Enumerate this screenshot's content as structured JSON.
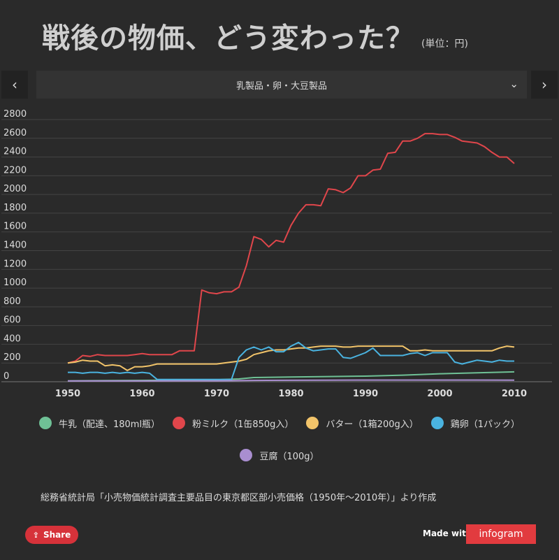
{
  "header": {
    "title": "戦後の物価、どう変わった？",
    "unit": "(単位：円)"
  },
  "selector": {
    "current": "乳製品・卵・大豆製品"
  },
  "chart_data": {
    "type": "line",
    "xlim": [
      1950,
      2010
    ],
    "ylim": [
      0,
      2800
    ],
    "x_ticks": [
      1950,
      1960,
      1970,
      1980,
      1990,
      2000,
      2010
    ],
    "y_ticks": [
      0,
      200,
      400,
      600,
      800,
      1000,
      1200,
      1400,
      1600,
      1800,
      2000,
      2200,
      2400,
      2600,
      2800
    ],
    "grid": true,
    "legend_position": "bottom",
    "series": [
      {
        "name": "牛乳（配達、180ml瓶）",
        "color": "#6fc196",
        "points": [
          [
            1950,
            10
          ],
          [
            1955,
            12
          ],
          [
            1960,
            14
          ],
          [
            1965,
            18
          ],
          [
            1970,
            22
          ],
          [
            1973,
            30
          ],
          [
            1975,
            45
          ],
          [
            1980,
            50
          ],
          [
            1985,
            55
          ],
          [
            1990,
            60
          ],
          [
            1995,
            70
          ],
          [
            2000,
            85
          ],
          [
            2005,
            95
          ],
          [
            2010,
            105
          ]
        ]
      },
      {
        "name": "粉ミルク（1缶850g入）",
        "color": "#e0464b",
        "points": [
          [
            1950,
            200
          ],
          [
            1951,
            220
          ],
          [
            1952,
            280
          ],
          [
            1953,
            270
          ],
          [
            1954,
            290
          ],
          [
            1955,
            280
          ],
          [
            1956,
            280
          ],
          [
            1957,
            280
          ],
          [
            1958,
            280
          ],
          [
            1959,
            290
          ],
          [
            1960,
            300
          ],
          [
            1961,
            290
          ],
          [
            1962,
            290
          ],
          [
            1963,
            290
          ],
          [
            1964,
            290
          ],
          [
            1965,
            330
          ],
          [
            1966,
            330
          ],
          [
            1967,
            330
          ],
          [
            1968,
            980
          ],
          [
            1969,
            950
          ],
          [
            1970,
            940
          ],
          [
            1971,
            960
          ],
          [
            1972,
            960
          ],
          [
            1973,
            1010
          ],
          [
            1974,
            1240
          ],
          [
            1975,
            1550
          ],
          [
            1976,
            1520
          ],
          [
            1977,
            1440
          ],
          [
            1978,
            1510
          ],
          [
            1979,
            1490
          ],
          [
            1980,
            1670
          ],
          [
            1981,
            1800
          ],
          [
            1982,
            1890
          ],
          [
            1983,
            1890
          ],
          [
            1984,
            1880
          ],
          [
            1985,
            2060
          ],
          [
            1986,
            2050
          ],
          [
            1987,
            2020
          ],
          [
            1988,
            2070
          ],
          [
            1989,
            2200
          ],
          [
            1990,
            2200
          ],
          [
            1991,
            2260
          ],
          [
            1992,
            2270
          ],
          [
            1993,
            2440
          ],
          [
            1994,
            2450
          ],
          [
            1995,
            2570
          ],
          [
            1996,
            2570
          ],
          [
            1997,
            2600
          ],
          [
            1998,
            2650
          ],
          [
            1999,
            2650
          ],
          [
            2000,
            2640
          ],
          [
            2001,
            2640
          ],
          [
            2002,
            2610
          ],
          [
            2003,
            2570
          ],
          [
            2004,
            2560
          ],
          [
            2005,
            2550
          ],
          [
            2006,
            2510
          ],
          [
            2007,
            2450
          ],
          [
            2008,
            2400
          ],
          [
            2009,
            2400
          ],
          [
            2010,
            2330
          ]
        ]
      },
      {
        "name": "バター（1箱200g入）",
        "color": "#f2c46a",
        "points": [
          [
            1950,
            200
          ],
          [
            1951,
            210
          ],
          [
            1952,
            230
          ],
          [
            1953,
            220
          ],
          [
            1954,
            220
          ],
          [
            1955,
            170
          ],
          [
            1956,
            180
          ],
          [
            1957,
            170
          ],
          [
            1958,
            120
          ],
          [
            1959,
            160
          ],
          [
            1960,
            160
          ],
          [
            1961,
            170
          ],
          [
            1962,
            190
          ],
          [
            1963,
            190
          ],
          [
            1964,
            190
          ],
          [
            1965,
            190
          ],
          [
            1966,
            190
          ],
          [
            1967,
            190
          ],
          [
            1968,
            190
          ],
          [
            1969,
            190
          ],
          [
            1970,
            190
          ],
          [
            1971,
            200
          ],
          [
            1972,
            210
          ],
          [
            1973,
            220
          ],
          [
            1974,
            240
          ],
          [
            1975,
            290
          ],
          [
            1976,
            310
          ],
          [
            1977,
            330
          ],
          [
            1978,
            340
          ],
          [
            1979,
            340
          ],
          [
            1980,
            350
          ],
          [
            1981,
            360
          ],
          [
            1982,
            360
          ],
          [
            1983,
            370
          ],
          [
            1984,
            380
          ],
          [
            1985,
            380
          ],
          [
            1986,
            380
          ],
          [
            1987,
            370
          ],
          [
            1988,
            370
          ],
          [
            1989,
            380
          ],
          [
            1990,
            380
          ],
          [
            1991,
            380
          ],
          [
            1992,
            380
          ],
          [
            1993,
            380
          ],
          [
            1994,
            380
          ],
          [
            1995,
            380
          ],
          [
            1996,
            330
          ],
          [
            1997,
            330
          ],
          [
            1998,
            340
          ],
          [
            1999,
            330
          ],
          [
            2000,
            330
          ],
          [
            2001,
            330
          ],
          [
            2002,
            330
          ],
          [
            2003,
            330
          ],
          [
            2004,
            330
          ],
          [
            2005,
            330
          ],
          [
            2006,
            330
          ],
          [
            2007,
            330
          ],
          [
            2008,
            360
          ],
          [
            2009,
            380
          ],
          [
            2010,
            370
          ]
        ]
      },
      {
        "name": "鶏卵（1パック）",
        "color": "#4ab3e0",
        "points": [
          [
            1950,
            100
          ],
          [
            1951,
            100
          ],
          [
            1952,
            90
          ],
          [
            1953,
            100
          ],
          [
            1954,
            100
          ],
          [
            1955,
            90
          ],
          [
            1956,
            100
          ],
          [
            1957,
            90
          ],
          [
            1958,
            100
          ],
          [
            1959,
            90
          ],
          [
            1960,
            100
          ],
          [
            1961,
            90
          ],
          [
            1962,
            25
          ],
          [
            1963,
            25
          ],
          [
            1964,
            25
          ],
          [
            1965,
            25
          ],
          [
            1966,
            25
          ],
          [
            1967,
            25
          ],
          [
            1968,
            25
          ],
          [
            1969,
            25
          ],
          [
            1970,
            25
          ],
          [
            1971,
            25
          ],
          [
            1972,
            25
          ],
          [
            1973,
            260
          ],
          [
            1974,
            340
          ],
          [
            1975,
            370
          ],
          [
            1976,
            340
          ],
          [
            1977,
            370
          ],
          [
            1978,
            320
          ],
          [
            1979,
            320
          ],
          [
            1980,
            380
          ],
          [
            1981,
            420
          ],
          [
            1982,
            360
          ],
          [
            1983,
            330
          ],
          [
            1984,
            340
          ],
          [
            1985,
            350
          ],
          [
            1986,
            350
          ],
          [
            1987,
            260
          ],
          [
            1988,
            250
          ],
          [
            1989,
            280
          ],
          [
            1990,
            310
          ],
          [
            1991,
            360
          ],
          [
            1992,
            280
          ],
          [
            1993,
            280
          ],
          [
            1994,
            280
          ],
          [
            1995,
            280
          ],
          [
            1996,
            300
          ],
          [
            1997,
            310
          ],
          [
            1998,
            280
          ],
          [
            1999,
            310
          ],
          [
            2000,
            310
          ],
          [
            2001,
            310
          ],
          [
            2002,
            210
          ],
          [
            2003,
            190
          ],
          [
            2004,
            210
          ],
          [
            2005,
            230
          ],
          [
            2006,
            220
          ],
          [
            2007,
            210
          ],
          [
            2008,
            230
          ],
          [
            2009,
            220
          ],
          [
            2010,
            220
          ]
        ]
      },
      {
        "name": "豆腐（100g）",
        "color": "#a98ed0",
        "points": [
          [
            1950,
            8
          ],
          [
            1960,
            8
          ],
          [
            1970,
            10
          ],
          [
            1975,
            14
          ],
          [
            1980,
            16
          ],
          [
            1985,
            17
          ],
          [
            1990,
            18
          ],
          [
            1995,
            18
          ],
          [
            2000,
            18
          ],
          [
            2005,
            18
          ],
          [
            2010,
            17
          ]
        ]
      }
    ]
  },
  "source": "総務省統計局「小売物価統計調査主要品目の東京都区部小売価格（1950年〜2010年）」より作成",
  "footer": {
    "share_label": "Share",
    "made_with": "Made with",
    "brand": "infogram"
  }
}
